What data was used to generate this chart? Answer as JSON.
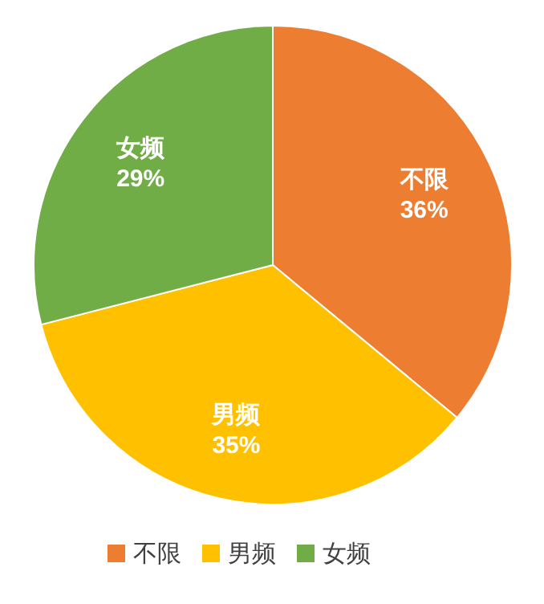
{
  "chart_data": {
    "type": "pie",
    "categories": [
      "不限",
      "男频",
      "女频"
    ],
    "values": [
      36,
      35,
      29
    ],
    "colors": [
      "#ed7d31",
      "#ffc000",
      "#70ad47"
    ],
    "value_labels": [
      "36%",
      "35%",
      "29%"
    ],
    "legend": "bottom"
  }
}
